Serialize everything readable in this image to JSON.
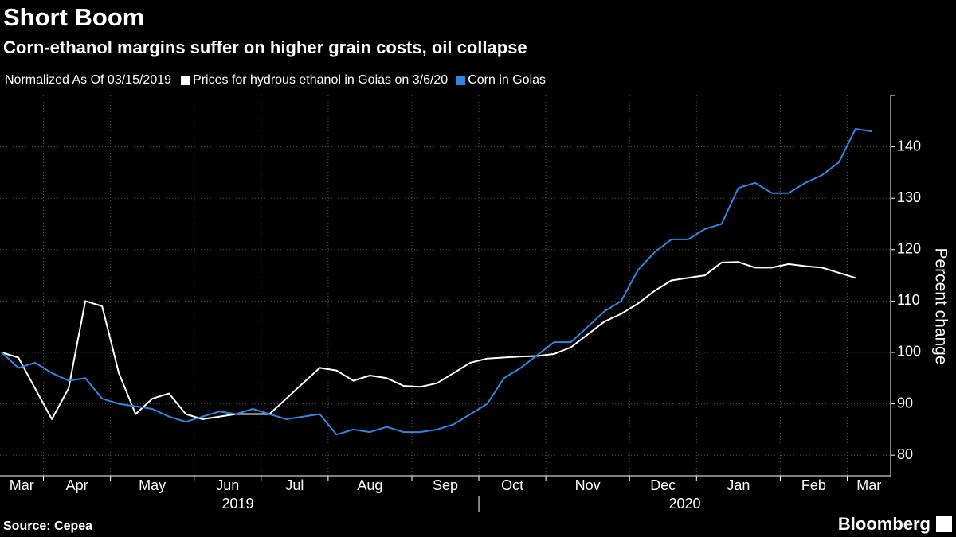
{
  "chart_data": {
    "type": "line",
    "title": "Short Boom",
    "subtitle": "Corn-ethanol margins suffer on higher grain costs, oil collapse",
    "note": "Normalized As Of 03/15/2019",
    "source": "Source: Cepea",
    "brand": "Bloomberg",
    "y_label": "Percent change",
    "categories": [
      "Mar",
      "Mar",
      "Mar",
      "Apr",
      "Apr",
      "Apr",
      "Apr",
      "May",
      "May",
      "May",
      "May",
      "May",
      "Jun",
      "Jun",
      "Jun",
      "Jun",
      "Jul",
      "Jul",
      "Jul",
      "Jul",
      "Aug",
      "Aug",
      "Aug",
      "Aug",
      "Aug",
      "Sep",
      "Sep",
      "Sep",
      "Sep",
      "Oct",
      "Oct",
      "Oct",
      "Oct",
      "Nov",
      "Nov",
      "Nov",
      "Nov",
      "Nov",
      "Dec",
      "Dec",
      "Dec",
      "Dec",
      "Jan",
      "Jan",
      "Jan",
      "Jan",
      "Jan",
      "Feb",
      "Feb",
      "Feb",
      "Feb",
      "Mar",
      "Mar"
    ],
    "years": [
      "2019",
      "2020"
    ],
    "series": [
      {
        "name": "Prices for hydrous ethanol in Goias on 3/6/20",
        "color": "#ffffff",
        "values": [
          100,
          99,
          93,
          87,
          93,
          110,
          109,
          96,
          88,
          91,
          92,
          88,
          87,
          87.5,
          88,
          88,
          88,
          91,
          94,
          97,
          96.5,
          94.5,
          95.5,
          95,
          93.5,
          93.3,
          94,
          96,
          98,
          98.8,
          99,
          99.2,
          99.3,
          99.7,
          101,
          103.5,
          106,
          107.5,
          109.5,
          112,
          114,
          114.5,
          115,
          117.5,
          117.6,
          116.5,
          116.5,
          117.2,
          116.8,
          116.5,
          115.5,
          114.5,
          null
        ]
      },
      {
        "name": "Corn in Goias",
        "color": "#2d86e6",
        "values": [
          100,
          97,
          98,
          96,
          94.5,
          95,
          91,
          90,
          89.5,
          89,
          87.5,
          86.5,
          87.5,
          88.5,
          88,
          89,
          88,
          87,
          87.5,
          88,
          84,
          85,
          84.5,
          85.5,
          84.5,
          84.5,
          85,
          86,
          88,
          90,
          95,
          97,
          99.5,
          102,
          102,
          105,
          108,
          110,
          116,
          119.5,
          122,
          122,
          124,
          125,
          132,
          133,
          131,
          131,
          133,
          134.5,
          137,
          143.5,
          143
        ]
      }
    ],
    "ylim": [
      76,
      150
    ],
    "yticks": [
      80,
      90,
      100,
      110,
      120,
      130,
      140
    ],
    "grid": true
  }
}
